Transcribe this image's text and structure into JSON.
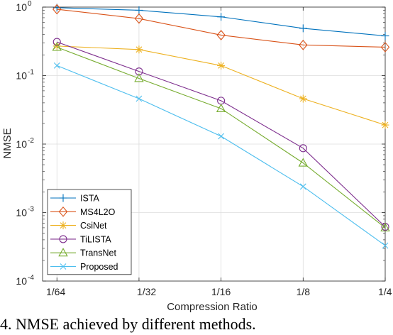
{
  "chart_data": {
    "type": "line",
    "xlabel": "Compression Ratio",
    "ylabel": "NMSE",
    "y_scale": "log",
    "ylim": [
      0.0001,
      1
    ],
    "x": [
      "1/64",
      "1/32",
      "1/16",
      "1/8",
      "1/4"
    ],
    "x_values": [
      0.015625,
      0.03125,
      0.0625,
      0.125,
      0.25
    ],
    "y_ticks": [
      {
        "value": 1,
        "mantissa": "10",
        "exponent": "0"
      },
      {
        "value": 0.1,
        "mantissa": "10",
        "exponent": "-1"
      },
      {
        "value": 0.01,
        "mantissa": "10",
        "exponent": "-2"
      },
      {
        "value": 0.001,
        "mantissa": "10",
        "exponent": "-3"
      },
      {
        "value": 0.0001,
        "mantissa": "10",
        "exponent": "-4"
      }
    ],
    "x_tick_labels": [
      "1/64",
      "1/32",
      "1/16",
      "1/8",
      "1/4"
    ],
    "grid": true,
    "legend_position": "bottom-left",
    "series": [
      {
        "name": "ISTA",
        "color": "#0072BD",
        "marker": "plus",
        "values": [
          0.98,
          0.9,
          0.72,
          0.49,
          0.38
        ]
      },
      {
        "name": "MS4L2O",
        "color": "#D95319",
        "marker": "diamond",
        "values": [
          0.93,
          0.68,
          0.39,
          0.28,
          0.26
        ]
      },
      {
        "name": "CsiNet",
        "color": "#EDB120",
        "marker": "asterisk",
        "values": [
          0.27,
          0.24,
          0.14,
          0.046,
          0.019
        ]
      },
      {
        "name": "TiLISTA",
        "color": "#7E2F8E",
        "marker": "circle",
        "values": [
          0.31,
          0.115,
          0.043,
          0.0087,
          0.00062
        ]
      },
      {
        "name": "TransNet",
        "color": "#77AC30",
        "marker": "triangle",
        "values": [
          0.26,
          0.091,
          0.033,
          0.0053,
          0.0006
        ]
      },
      {
        "name": "Proposed",
        "color": "#4DBEEE",
        "marker": "cross",
        "values": [
          0.14,
          0.046,
          0.013,
          0.0024,
          0.00033
        ]
      }
    ]
  },
  "caption": "4. NMSE achieved by different methods."
}
